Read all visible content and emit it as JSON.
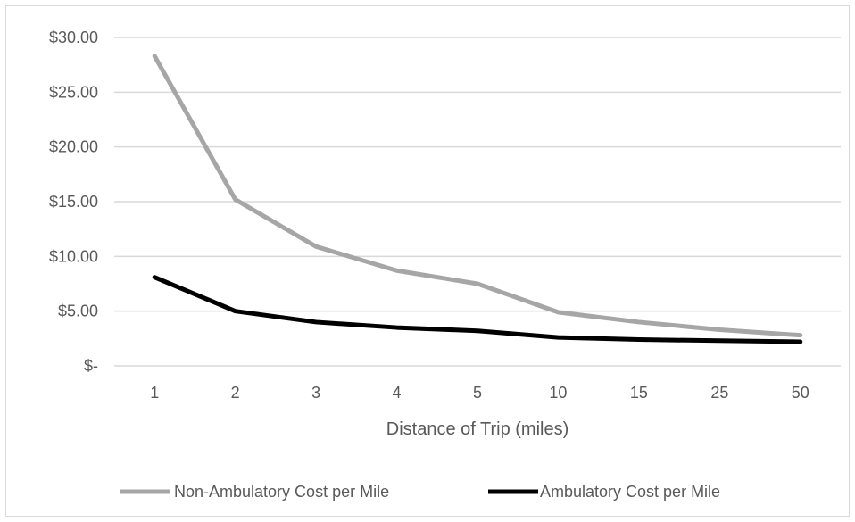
{
  "chart_data": {
    "type": "line",
    "title": "",
    "xlabel": "Distance of Trip (miles)",
    "ylabel": "",
    "categories": [
      "1",
      "2",
      "3",
      "4",
      "5",
      "10",
      "15",
      "25",
      "50"
    ],
    "ylim": [
      0,
      30
    ],
    "yticks": [
      0,
      5,
      10,
      15,
      20,
      25,
      30
    ],
    "ytick_labels": [
      "$-",
      "$5.00",
      "$10.00",
      "$15.00",
      "$20.00",
      "$25.00",
      "$30.00"
    ],
    "grid": true,
    "legend_position": "bottom",
    "series": [
      {
        "name": "Non-Ambulatory Cost per Mile",
        "color": "#a6a6a6",
        "values": [
          28.3,
          15.2,
          10.9,
          8.7,
          7.5,
          4.9,
          4.0,
          3.3,
          2.8
        ]
      },
      {
        "name": "Ambulatory Cost per Mile",
        "color": "#000000",
        "values": [
          8.1,
          5.0,
          4.0,
          3.5,
          3.2,
          2.6,
          2.4,
          2.3,
          2.2
        ]
      }
    ]
  }
}
